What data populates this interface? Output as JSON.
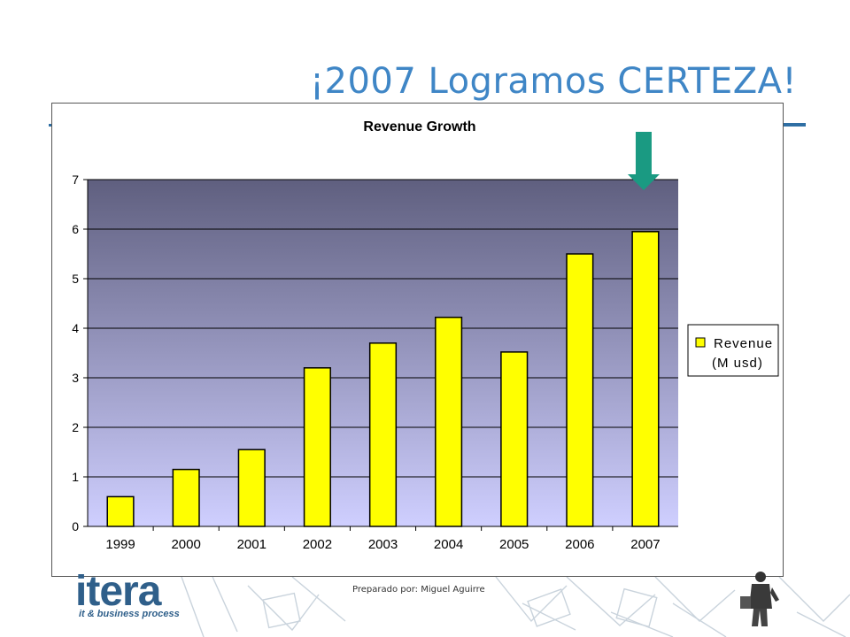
{
  "slide": {
    "title": "¡2007 Logramos CERTEZA!",
    "footer": "Preparado por: Miguel Aguirre",
    "logo_word": "itera",
    "logo_tagline": "it & business process"
  },
  "colors": {
    "title": "#3f86c6",
    "bar_fill": "#ffff00",
    "plot_top": "#5f5f7f",
    "plot_bottom": "#cfcfff",
    "arrow": "#1a9a82",
    "logo": "#2f5f8a"
  },
  "chart_data": {
    "type": "bar",
    "title": "Revenue Growth",
    "categories": [
      "1999",
      "2000",
      "2001",
      "2002",
      "2003",
      "2004",
      "2005",
      "2006",
      "2007"
    ],
    "series": [
      {
        "name": "Revenue (M usd)",
        "values": [
          0.6,
          1.15,
          1.55,
          3.2,
          3.7,
          4.22,
          3.52,
          5.5,
          5.95
        ]
      }
    ],
    "legend_lines": [
      "Revenue",
      "(M usd)"
    ],
    "ylim": [
      0,
      7
    ],
    "yticks": [
      "0",
      "1",
      "2",
      "3",
      "4",
      "5",
      "6",
      "7"
    ],
    "grid": true,
    "legend_position": "right",
    "annotation": "down-arrow pointing at 2007 bar"
  }
}
